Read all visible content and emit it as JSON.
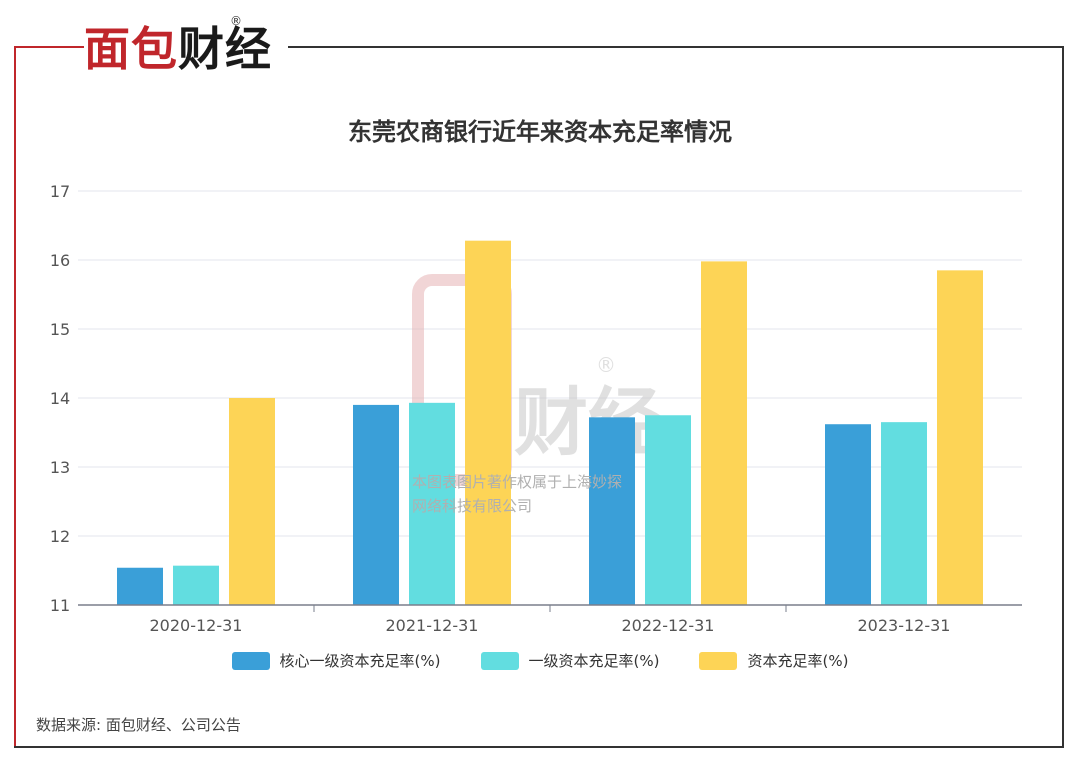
{
  "brand": {
    "logo_part1": "面包",
    "logo_part2": "财经",
    "registered_mark": "®",
    "watermark_line1": "本图表图片著作权属于上海妙探",
    "watermark_line2": "网络科技有限公司",
    "red": "#c0262b"
  },
  "source_text": "数据来源: 面包财经、公司公告",
  "chart_data": {
    "type": "bar",
    "title": "东莞农商银行近年来资本充足率情况",
    "categories": [
      "2020-12-31",
      "2021-12-31",
      "2022-12-31",
      "2023-12-31"
    ],
    "series": [
      {
        "name": "核心一级资本充足率(%)",
        "color": "#3a9fd8",
        "values": [
          11.54,
          13.9,
          13.72,
          13.62
        ]
      },
      {
        "name": "一级资本充足率(%)",
        "color": "#62dde0",
        "values": [
          11.57,
          13.93,
          13.75,
          13.65
        ]
      },
      {
        "name": "资本充足率(%)",
        "color": "#fdd456",
        "values": [
          14.0,
          16.28,
          15.98,
          15.85
        ]
      }
    ],
    "ylim": [
      11,
      17
    ],
    "yticks": [
      11,
      12,
      13,
      14,
      15,
      16,
      17
    ],
    "grid": true,
    "legend_position": "bottom"
  }
}
